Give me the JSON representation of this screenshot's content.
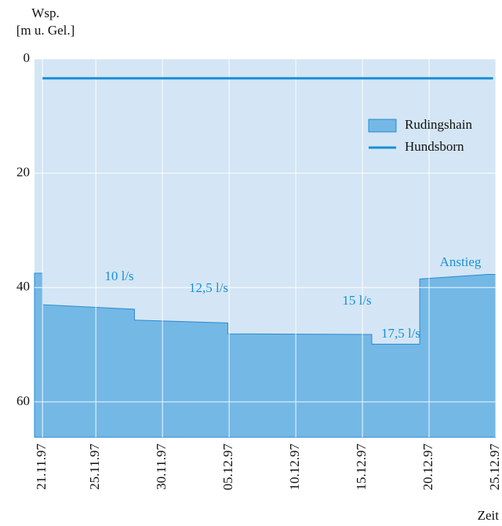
{
  "chart_data": {
    "type": "area",
    "y_label": [
      "Wsp.",
      "[m u. Gel.]"
    ],
    "x_label": "Zeit",
    "x": [
      -0.6,
      0,
      0,
      6.9,
      6.9,
      13.9,
      13.9,
      24.7,
      24.7,
      28.3,
      28.3,
      33.4,
      34
    ],
    "series": [
      {
        "name": "Rudingshain",
        "color": "#74b8e6",
        "type": "area",
        "values": [
          37.5,
          37.5,
          43,
          43.8,
          45.7,
          46.2,
          48.1,
          48.2,
          49.9,
          49.9,
          38.5,
          37.7,
          37.7
        ]
      },
      {
        "name": "Hundsborn",
        "color": "#1a8fd6",
        "type": "line",
        "x": [
          0,
          33.8
        ],
        "values": [
          3.4,
          3.4
        ]
      }
    ],
    "xlim": [
      -0.6,
      34
    ],
    "xticks": [
      {
        "value": 0,
        "label": "21.11.97"
      },
      {
        "value": 4,
        "label": "25.11.97"
      },
      {
        "value": 9,
        "label": "30.11.97"
      },
      {
        "value": 14,
        "label": "05.12.97"
      },
      {
        "value": 19,
        "label": "10.12.97"
      },
      {
        "value": 24,
        "label": "15.12.97"
      },
      {
        "value": 29,
        "label": "20.12.97"
      },
      {
        "value": 34,
        "label": "25.12.97"
      }
    ],
    "ylim": [
      0,
      66.2
    ],
    "y_inverted": true,
    "yticks": [
      0,
      20,
      40,
      60
    ],
    "grid": true,
    "legend": "upper right",
    "background": "#d4e6f5",
    "annotations": [
      "10 l/s",
      "12,5 l/s",
      "15 l/s",
      "17,5 l/s",
      "Anstieg"
    ]
  }
}
